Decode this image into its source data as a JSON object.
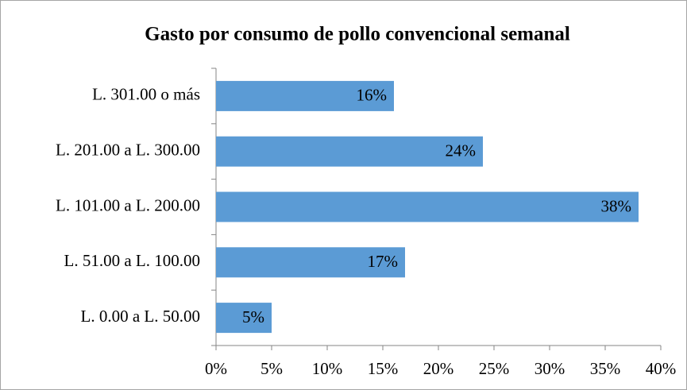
{
  "chart_data": {
    "type": "barh",
    "title": "Gasto por consumo de pollo convencional semanal",
    "categories": [
      "L. 301.00 o más",
      "L. 201.00 a L. 300.00",
      "L. 101.00 a L. 200.00",
      "L. 51.00 a L. 100.00",
      "L. 0.00 a L. 50.00"
    ],
    "values": [
      16,
      24,
      38,
      17,
      5
    ],
    "value_labels": [
      "16%",
      "24%",
      "38%",
      "17%",
      "5%"
    ],
    "color": "#5b9bd5",
    "xlim": [
      0,
      40
    ],
    "xticks": [
      {
        "value": 0,
        "label": "0%"
      },
      {
        "value": 5,
        "label": "5%"
      },
      {
        "value": 10,
        "label": "10%"
      },
      {
        "value": 15,
        "label": "15%"
      },
      {
        "value": 20,
        "label": "20%"
      },
      {
        "value": 25,
        "label": "25%"
      },
      {
        "value": 30,
        "label": "30%"
      },
      {
        "value": 35,
        "label": "35%"
      },
      {
        "value": 40,
        "label": "40%"
      }
    ],
    "grid": false
  }
}
